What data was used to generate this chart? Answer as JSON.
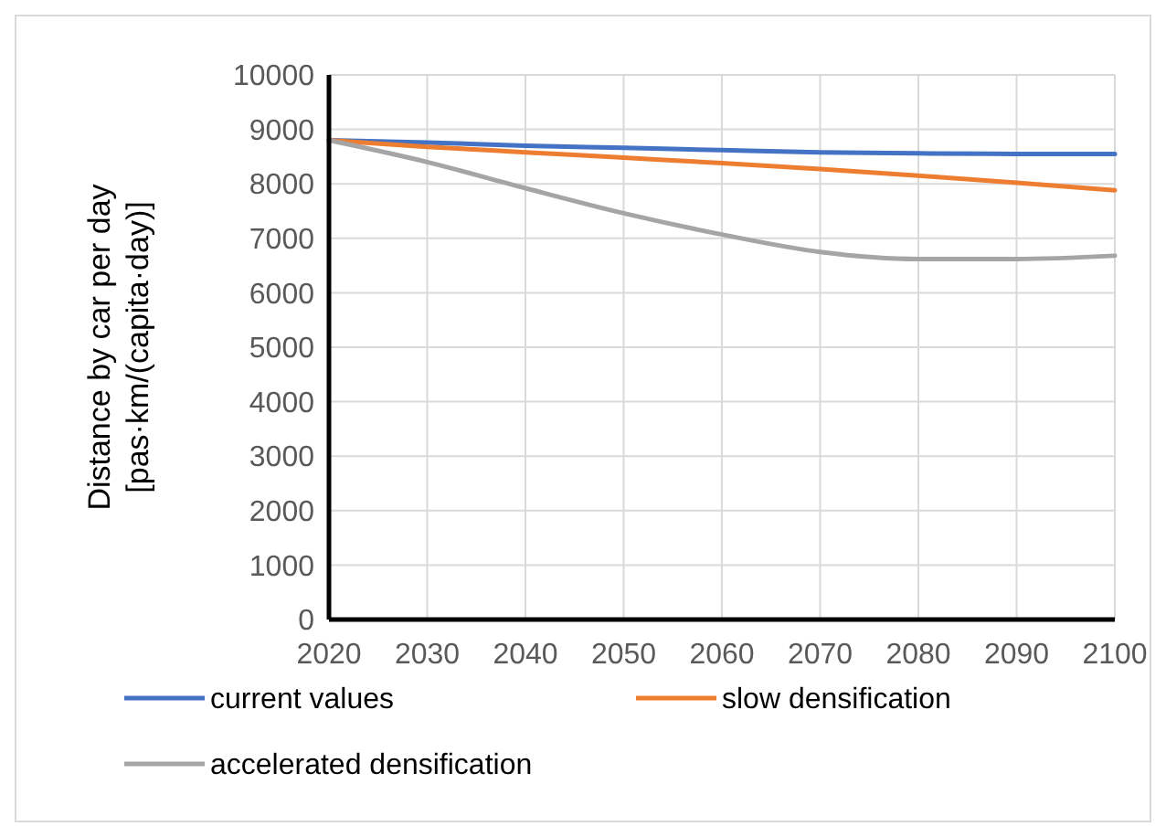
{
  "chart_data": {
    "type": "line",
    "ylabel": "Distance by car per day\n[pas·km/(capita·day)]",
    "x": [
      2020,
      2030,
      2040,
      2050,
      2060,
      2070,
      2080,
      2090,
      2100
    ],
    "xlim": [
      2020,
      2100
    ],
    "xticks": [
      2020,
      2030,
      2040,
      2050,
      2060,
      2070,
      2080,
      2090,
      2100
    ],
    "ylim": [
      0,
      10000
    ],
    "yticks": [
      0,
      1000,
      2000,
      3000,
      4000,
      5000,
      6000,
      7000,
      8000,
      9000,
      10000
    ],
    "grid": true,
    "legend": "bottom",
    "marker": "none",
    "line_style": "solid",
    "series": [
      {
        "name": "current values",
        "color": "#4472c4",
        "values": [
          8800,
          8760,
          8700,
          8660,
          8620,
          8580,
          8560,
          8550,
          8550
        ]
      },
      {
        "name": "slow densification",
        "color": "#ed7d31",
        "values": [
          8800,
          8680,
          8580,
          8480,
          8380,
          8270,
          8150,
          8020,
          7880
        ]
      },
      {
        "name": "accelerated densification",
        "color": "#a5a5a5",
        "values": [
          8800,
          8400,
          7920,
          7460,
          7070,
          6750,
          6620,
          6620,
          6680
        ]
      }
    ]
  }
}
